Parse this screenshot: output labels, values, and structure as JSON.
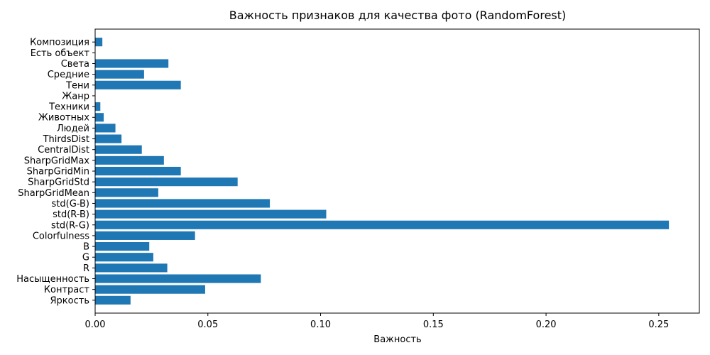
{
  "chart_data": {
    "type": "bar",
    "orientation": "horizontal",
    "title": "Важность признаков для качества фото (RandomForest)",
    "xlabel": "Важность",
    "ylabel": "",
    "xlim": [
      0,
      0.268
    ],
    "x_ticks": [
      "0.00",
      "0.05",
      "0.10",
      "0.15",
      "0.20",
      "0.25"
    ],
    "x_tick_values": [
      0,
      0.05,
      0.1,
      0.15,
      0.2,
      0.25
    ],
    "grid": false,
    "bar_color": "#1f77b4",
    "categories": [
      "Яркость",
      "Контраст",
      "Насыщенность",
      "R",
      "G",
      "B",
      "Colorfulness",
      "std(R-G)",
      "std(R-B)",
      "std(G-B)",
      "SharpGridMean",
      "SharpGridStd",
      "SharpGridMin",
      "SharpGridMax",
      "CentralDist",
      "ThirdsDist",
      "Людей",
      "Животных",
      "Техники",
      "Жанр",
      "Тени",
      "Средние",
      "Света",
      "Есть объект",
      "Композиция"
    ],
    "values": [
      0.0157,
      0.0488,
      0.0735,
      0.032,
      0.0258,
      0.024,
      0.0443,
      0.2545,
      0.1025,
      0.0775,
      0.028,
      0.0632,
      0.038,
      0.0305,
      0.0207,
      0.0117,
      0.009,
      0.0038,
      0.0023,
      0.0,
      0.038,
      0.0217,
      0.0325,
      0.0,
      0.0032
    ]
  }
}
